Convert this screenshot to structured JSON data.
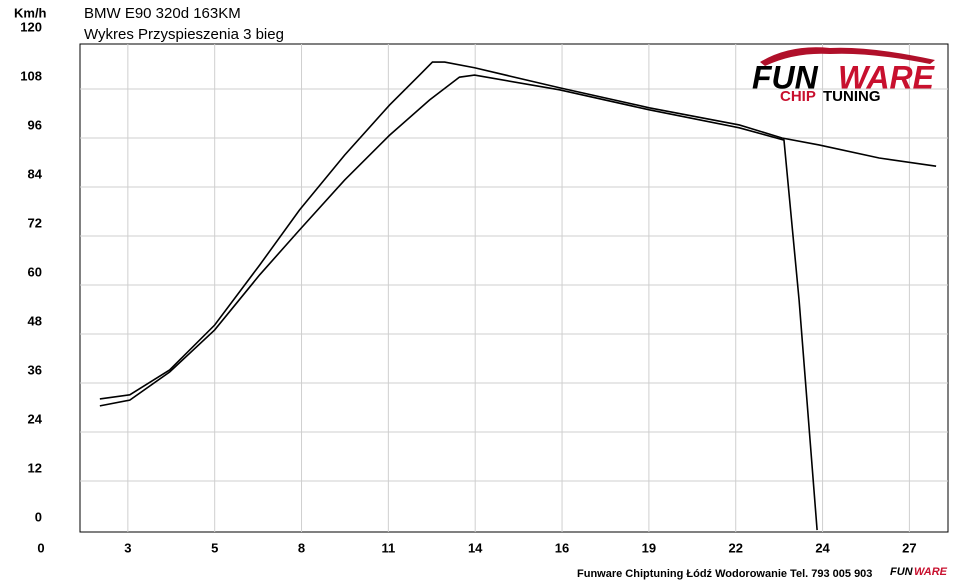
{
  "chart_data": {
    "type": "line",
    "title": "BMW E90 320d 163KM",
    "subtitle": "Wykres Przyspieszenia 3 bieg",
    "y_label": "Km/h",
    "xlim": [
      0,
      28.2
    ],
    "xticks": [
      0,
      {
        "value": 2.7,
        "label": "3"
      },
      {
        "value": 5.4,
        "label": "5"
      },
      {
        "value": 8.1,
        "label": "8"
      },
      {
        "value": 10.8,
        "label": "11"
      },
      {
        "value": 13.5,
        "label": "14"
      },
      {
        "value": 16.2,
        "label": "16"
      },
      {
        "value": 18.9,
        "label": "19"
      },
      {
        "value": 21.6,
        "label": "22"
      },
      {
        "value": 24.3,
        "label": "24"
      },
      {
        "value": 27,
        "label": "27"
      }
    ],
    "ylim": [
      0,
      120
    ],
    "yticks": [
      0,
      12,
      24,
      36,
      48,
      60,
      72,
      84,
      96,
      108,
      120
    ],
    "grid": true,
    "series": [
      {
        "color": "#000000",
        "x": [
          1.83,
          2.76,
          4.0,
          5.4,
          6.8,
          8.04,
          9.44,
          10.84,
          11.77,
          12.17,
          12.55,
          13.48,
          16.12,
          18.91,
          21.71,
          23.04,
          24.19,
          26.06,
          27.83
        ],
        "values": [
          32.1,
          33.1,
          39.2,
          50.2,
          64.9,
          78.4,
          91.8,
          104.1,
          111.4,
          114.6,
          114.6,
          113.2,
          108.3,
          103.4,
          99.2,
          96,
          94.3,
          91.1,
          89.1
        ]
      },
      {
        "color": "#000000",
        "x": [
          1.83,
          2.76,
          4.0,
          5.4,
          6.8,
          8.04,
          9.44,
          10.84,
          12.08,
          13.01,
          13.48,
          16.12,
          18.91,
          21.71,
          23.1,
          23.57,
          24.13
        ],
        "values": [
          30.4,
          31.8,
          38.7,
          49,
          62.5,
          73.5,
          85.7,
          96.7,
          105.3,
          110.9,
          111.4,
          107.8,
          102.9,
          98.5,
          95.5,
          56.3,
          0
        ]
      }
    ]
  },
  "logo": {
    "fun": "FUN",
    "ware": "WARE",
    "chip": "CHIP",
    "tuning": "TUNING"
  },
  "footer": "Funware Chiptuning Łódź Wodorowanie Tel. 793 005 903"
}
